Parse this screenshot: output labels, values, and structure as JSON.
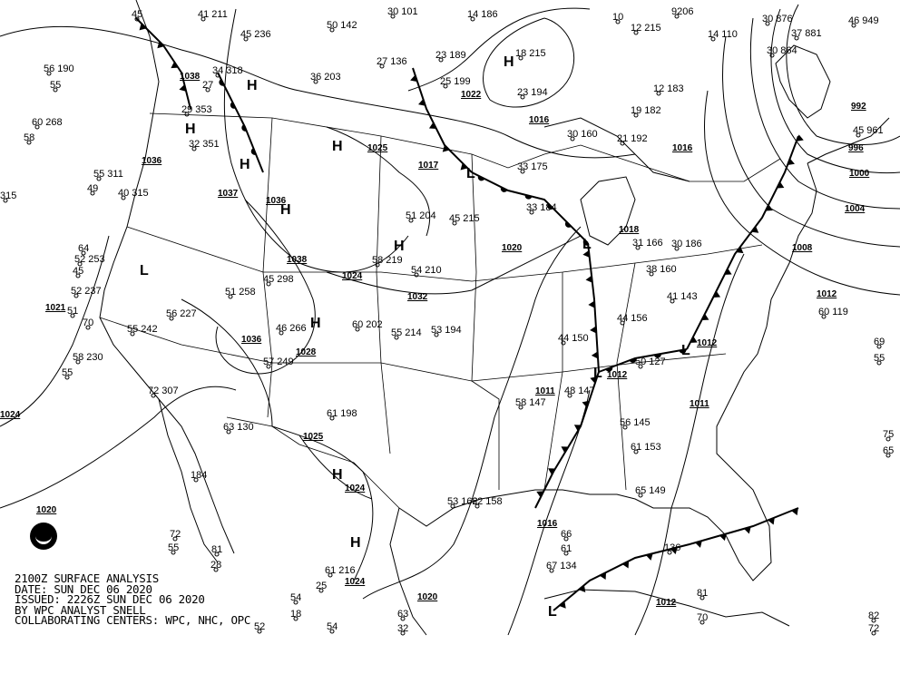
{
  "caption": {
    "line1": "2100Z SURFACE ANALYSIS",
    "line2": "DATE: SUN DEC 06 2020",
    "line3": "ISSUED: 2226Z SUN DEC 06 2020",
    "line4": "BY WPC ANALYST SNELL",
    "line5": "COLLABORATING CENTERS: WPC, NHC, OPC"
  },
  "logo": {
    "text": "NOAA"
  },
  "colors": {
    "ink": "#000000",
    "background": "#ffffff"
  },
  "isobar_labels": [
    "1038",
    "1036",
    "1037",
    "1036",
    "1038",
    "1024",
    "1032",
    "1036",
    "1028",
    "1025",
    "1024",
    "1024",
    "1020",
    "1016",
    "1012",
    "1012",
    "1008",
    "1004",
    "1000",
    "996",
    "992",
    "1016",
    "1018",
    "1020",
    "1017",
    "1016",
    "1022",
    "1025",
    "1021",
    "1024",
    "1020",
    "1011",
    "1012",
    "1012",
    "1011"
  ],
  "pressure_centers": [
    "H",
    "H",
    "H",
    "H",
    "H",
    "H",
    "H",
    "H",
    "H",
    "H",
    "L",
    "L",
    "L",
    "L",
    "L",
    "L"
  ],
  "station_values": [
    "56 190",
    "55",
    "60 268",
    "58",
    "315",
    "55 311",
    "49",
    "40 315",
    "64",
    "52 253",
    "45",
    "52 237",
    "51",
    "70",
    "58 230",
    "55",
    "72 307",
    "63 130",
    "184",
    "72",
    "55",
    "81",
    "28",
    "61 216",
    "25",
    "54",
    "18",
    "52",
    "54",
    "63",
    "32",
    "30 101",
    "14 186",
    "9206",
    "10",
    "12 215",
    "14 110",
    "50 142",
    "41 211",
    "45",
    "45 236",
    "34 318",
    "27",
    "29 353",
    "32 351",
    "36 203",
    "27 136",
    "23 189",
    "25 199",
    "18 215",
    "23 194",
    "19 182",
    "12 183",
    "30 160",
    "21 192",
    "33 175",
    "33 184",
    "31 166",
    "30 186",
    "38 160",
    "41 143",
    "60 119",
    "69",
    "55",
    "75",
    "65",
    "56 145",
    "61 153",
    "65 149",
    "67 134",
    "136",
    "81",
    "70",
    "72",
    "82",
    "66",
    "61",
    "53 162",
    "62 158",
    "46 266",
    "45 298",
    "51 258",
    "57 249",
    "55 242",
    "56 227",
    "60 202",
    "55 214",
    "54 210",
    "51 204",
    "45 215",
    "58 219",
    "58 147",
    "48 147",
    "44 150",
    "44 156",
    "50 127",
    "61 198",
    "53 194",
    "46 949",
    "45 961",
    "37 881",
    "30 864",
    "30 876"
  ]
}
